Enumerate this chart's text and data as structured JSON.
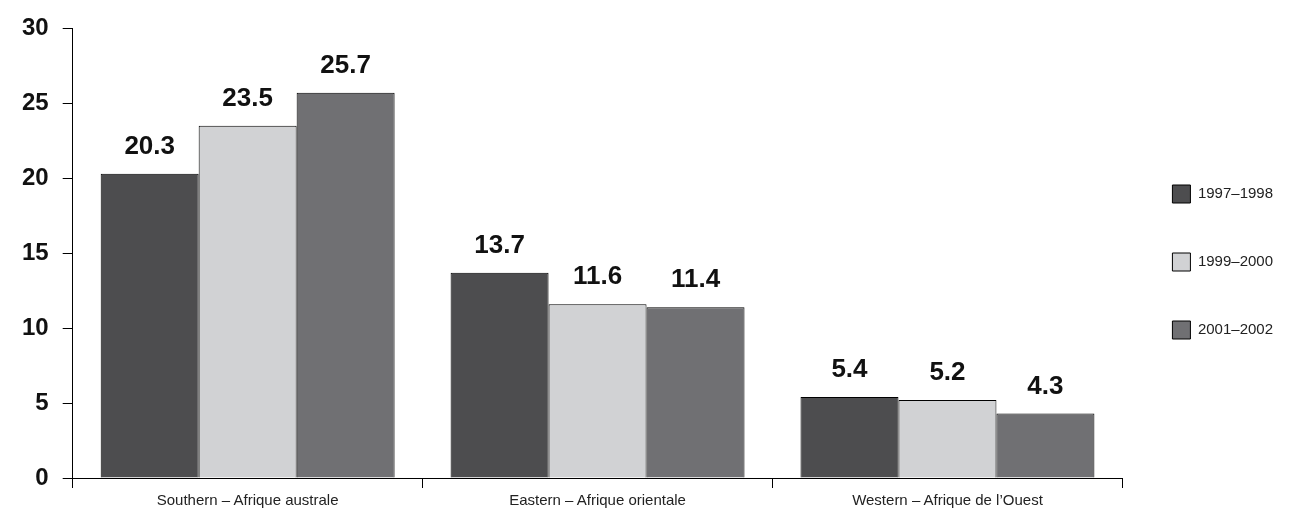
{
  "chart_data": {
    "type": "bar",
    "categories": [
      "Southern – Afrique australe",
      "Eastern – Afrique orientale",
      "Western – Afrique de l’Ouest"
    ],
    "series": [
      {
        "name": "1997–1998",
        "color": "#4d4d4f",
        "values": [
          20.3,
          13.7,
          5.4
        ]
      },
      {
        "name": "1999–2000",
        "color": "#d1d2d4",
        "values": [
          23.5,
          11.6,
          5.2
        ]
      },
      {
        "name": "2001–2002",
        "color": "#707073",
        "values": [
          25.7,
          11.4,
          4.3
        ]
      }
    ],
    "ylim": [
      0,
      30
    ],
    "yticks": [
      0,
      5,
      10,
      15,
      20,
      25,
      30
    ],
    "grid": false,
    "legend": "right",
    "data_labels": true
  }
}
